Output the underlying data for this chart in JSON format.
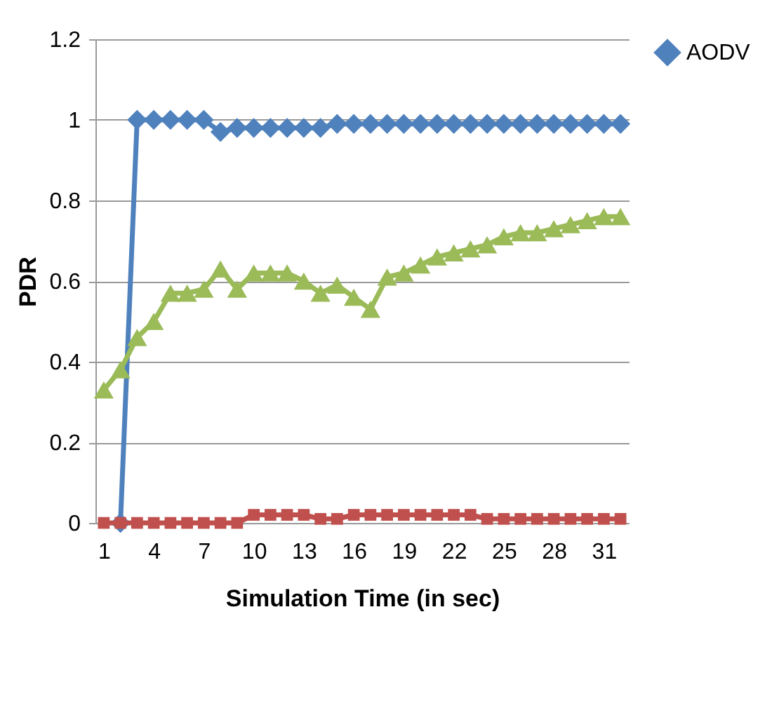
{
  "chart_data": {
    "type": "line",
    "xlabel": "Simulation Time (in sec)",
    "ylabel": "PDR",
    "categories": [
      "1",
      null,
      null,
      "4",
      null,
      null,
      "7",
      null,
      null,
      "10",
      null,
      null,
      "13",
      null,
      null,
      "16",
      null,
      null,
      "19",
      null,
      null,
      "22",
      null,
      null,
      "25",
      null,
      null,
      "28",
      null,
      null,
      "31",
      null
    ],
    "series": [
      {
        "name": "AODV",
        "color": "#4f81bd",
        "marker": "diamond",
        "values": [
          null,
          0,
          1,
          1,
          1,
          1,
          1,
          0.97,
          0.98,
          0.98,
          0.98,
          0.98,
          0.98,
          0.98,
          0.99,
          0.99,
          0.99,
          0.99,
          0.99,
          0.99,
          0.99,
          0.99,
          0.99,
          0.99,
          0.99,
          0.99,
          0.99,
          0.99,
          0.99,
          0.99,
          0.99,
          0.99
        ]
      },
      {
        "color": "#9bbb59",
        "marker": "triangle",
        "values": [
          0.33,
          0.38,
          0.46,
          0.5,
          0.57,
          0.57,
          0.58,
          0.63,
          0.58,
          0.62,
          0.62,
          0.62,
          0.6,
          0.57,
          0.59,
          0.56,
          0.53,
          0.61,
          0.62,
          0.64,
          0.66,
          0.67,
          0.68,
          0.69,
          0.71,
          0.72,
          0.72,
          0.73,
          0.74,
          0.75,
          0.76,
          0.76
        ]
      },
      {
        "color": "#c0504d",
        "marker": "square",
        "values": [
          0,
          0,
          0,
          0,
          0,
          0,
          0,
          0,
          0,
          0.02,
          0.02,
          0.02,
          0.02,
          0.01,
          0.01,
          0.02,
          0.02,
          0.02,
          0.02,
          0.02,
          0.02,
          0.02,
          0.02,
          0.01,
          0.01,
          0.01,
          0.01,
          0.01,
          0.01,
          0.01,
          0.01,
          0.01
        ]
      }
    ],
    "ylim": [
      0,
      1.2
    ],
    "yticks": [
      0,
      0.2,
      0.4,
      0.6,
      0.8,
      1,
      1.2
    ],
    "grid": "y",
    "legend": "right"
  }
}
